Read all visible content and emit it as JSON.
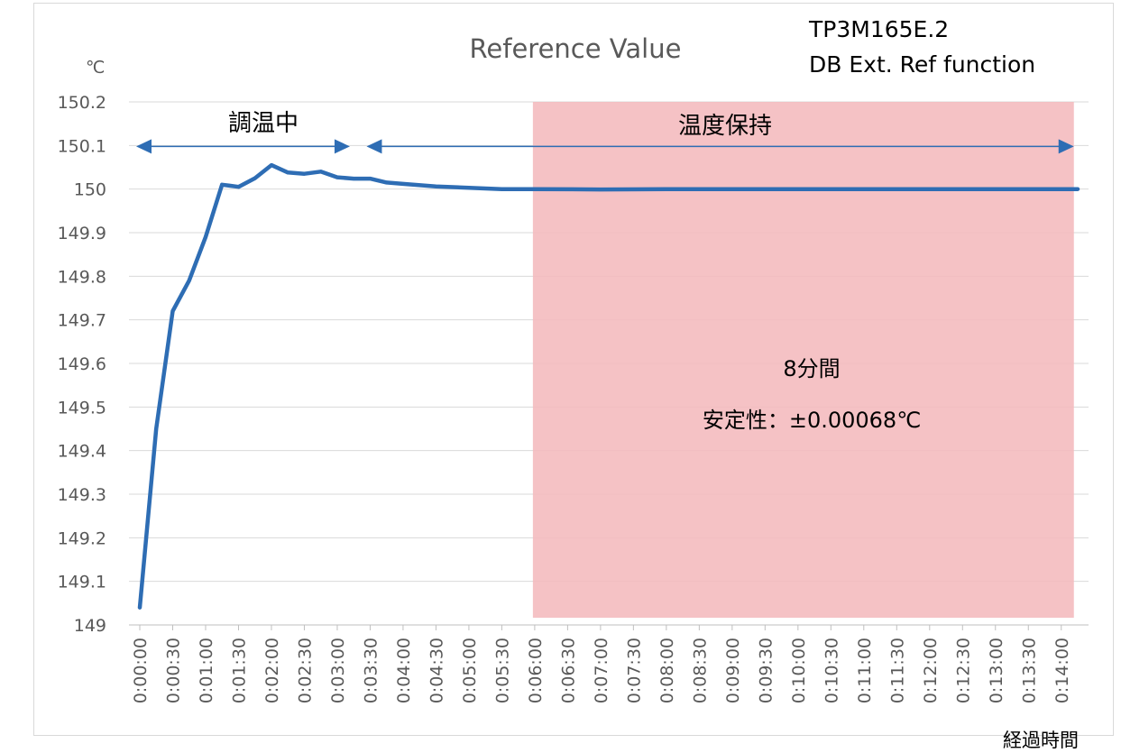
{
  "chart_data": {
    "type": "line",
    "title": "Reference Value",
    "ylabel": "℃",
    "xlabel": "経過時間",
    "ylim": [
      149,
      150.2
    ],
    "yticks": [
      "149",
      "149.1",
      "149.2",
      "149.3",
      "149.4",
      "149.5",
      "149.6",
      "149.7",
      "149.8",
      "149.9",
      "150",
      "150.1",
      "150.2"
    ],
    "xticks": [
      "0:00:00",
      "0:00:30",
      "0:01:00",
      "0:01:30",
      "0:02:00",
      "0:02:30",
      "0:03:00",
      "0:03:30",
      "0:04:00",
      "0:04:30",
      "0:05:00",
      "0:05:30",
      "0:06:00",
      "0:06:30",
      "0:07:00",
      "0:07:30",
      "0:08:00",
      "0:08:30",
      "0:09:00",
      "0:09:30",
      "0:10:00",
      "0:10:30",
      "0:11:00",
      "0:11:30",
      "0:12:00",
      "0:12:30",
      "0:13:00",
      "0:13:30",
      "0:14:00"
    ],
    "grid": true,
    "series": [
      {
        "color": "#2e6db4",
        "points": [
          [
            "0:00:00",
            149.04
          ],
          [
            "0:00:15",
            149.45
          ],
          [
            "0:00:30",
            149.72
          ],
          [
            "0:00:45",
            149.79
          ],
          [
            "0:01:00",
            149.89
          ],
          [
            "0:01:15",
            150.01
          ],
          [
            "0:01:30",
            150.005
          ],
          [
            "0:01:45",
            150.025
          ],
          [
            "0:02:00",
            150.055
          ],
          [
            "0:02:15",
            150.038
          ],
          [
            "0:02:30",
            150.035
          ],
          [
            "0:02:45",
            150.04
          ],
          [
            "0:03:00",
            150.027
          ],
          [
            "0:03:15",
            150.024
          ],
          [
            "0:03:30",
            150.024
          ],
          [
            "0:03:45",
            150.015
          ],
          [
            "0:04:00",
            150.012
          ],
          [
            "0:04:30",
            150.006
          ],
          [
            "0:05:00",
            150.003
          ],
          [
            "0:05:30",
            150.0
          ],
          [
            "0:06:00",
            150.0
          ],
          [
            "0:07:00",
            149.999
          ],
          [
            "0:08:00",
            150.0
          ],
          [
            "0:09:00",
            150.0
          ],
          [
            "0:10:00",
            150.0
          ],
          [
            "0:11:00",
            150.0
          ],
          [
            "0:12:00",
            150.0
          ],
          [
            "0:13:00",
            150.0
          ],
          [
            "0:14:00",
            150.0
          ],
          [
            "0:14:15",
            150.0
          ]
        ]
      }
    ],
    "annotations": {
      "product": "TP3M165E.2",
      "function": "DB Ext. Ref function",
      "adjusting_label": "調温中",
      "holding_label": "温度保持",
      "duration_label": "8分間",
      "stability_label": "安定性：±0.00068℃",
      "holding_region": {
        "x_start": "0:06:00",
        "x_end": "0:14:00",
        "color": "#f4b9bd"
      },
      "adjusting_span": {
        "x_start": "0:00:00",
        "x_end": "0:03:00"
      },
      "holding_span": {
        "x_start": "0:03:30",
        "x_end": "0:14:00"
      },
      "arrow_y": 150.1
    }
  }
}
